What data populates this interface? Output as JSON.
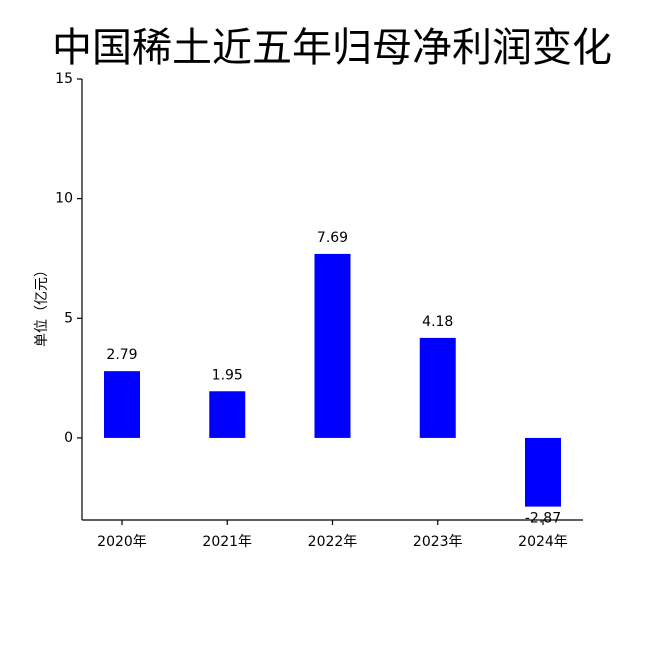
{
  "chart_data": {
    "type": "bar",
    "title": "中国稀土近五年归母净利润变化",
    "y_label": "单位（亿元）",
    "categories": [
      "2020年",
      "2021年",
      "2022年",
      "2023年",
      "2024年"
    ],
    "values": [
      2.79,
      1.95,
      7.69,
      4.18,
      -2.87
    ],
    "color": "#0000ff",
    "ylim": [
      -3.43,
      15
    ],
    "yticks": [
      0,
      5,
      10,
      15
    ],
    "grid": false
  }
}
